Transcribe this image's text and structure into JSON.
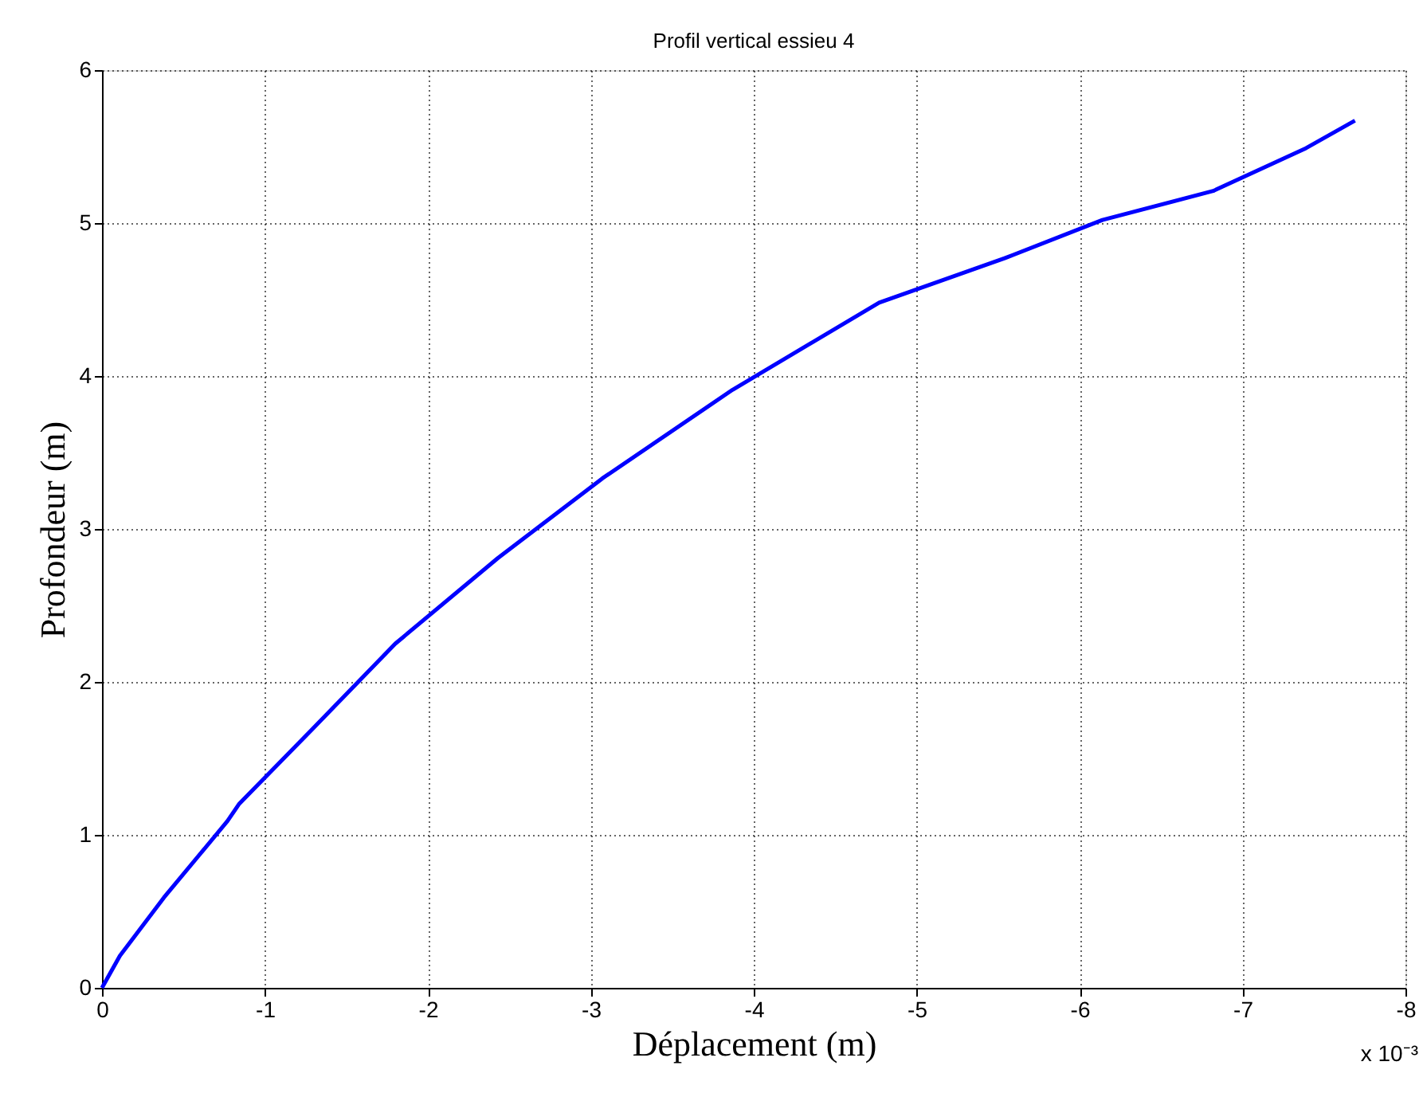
{
  "chart_data": {
    "type": "line",
    "title": "Profil vertical essieu 4",
    "xlabel": "Déplacement (m)",
    "ylabel": "Profondeur (m)",
    "x": [
      0,
      -0.11,
      -0.38,
      -0.77,
      -0.84,
      -1.29,
      -1.8,
      -2.43,
      -3.07,
      -3.87,
      -4.77,
      -5.54,
      -6.14,
      -6.82,
      -7.39,
      -7.69
    ],
    "series": [
      {
        "color": "#0000ff",
        "values": [
          0,
          0.21,
          0.59,
          1.09,
          1.2,
          1.69,
          2.25,
          2.81,
          3.33,
          3.91,
          4.48,
          4.77,
          5.02,
          5.21,
          5.49,
          5.67
        ]
      }
    ],
    "xlim": [
      0,
      -8
    ],
    "xticks": [
      0,
      -1,
      -2,
      -3,
      -4,
      -5,
      -6,
      -7,
      -8
    ],
    "ylim": [
      0,
      6
    ],
    "yticks": [
      0,
      1,
      2,
      3,
      4,
      5,
      6
    ],
    "annotations": [
      "x 10⁻³"
    ],
    "grid": true,
    "marker": "none",
    "line_style": "solid"
  }
}
